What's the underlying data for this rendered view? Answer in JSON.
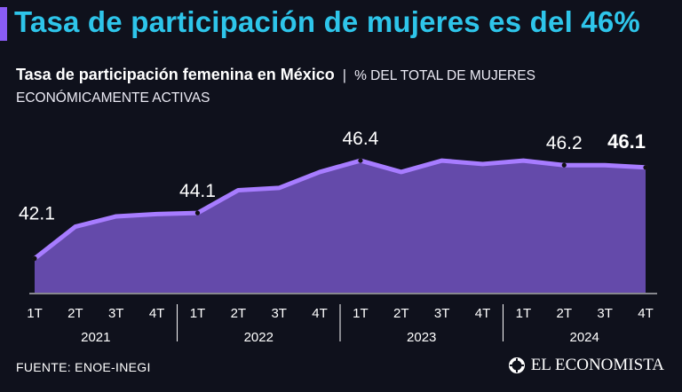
{
  "headline": "Tasa de participación de mujeres es del 46%",
  "subtitle": {
    "title": "Tasa de participación femenina en México",
    "separator": "|",
    "unit": "% DEL TOTAL DE MUJERES ECONÓMICAMENTE ACTIVAS"
  },
  "colors": {
    "background": "#0f111c",
    "headline": "#2ec5ea",
    "accent": "#8a5cf6",
    "area_fill": "#6b4fb6",
    "line": "#a77cff"
  },
  "chart_data": {
    "type": "area",
    "title": "Tasa de participación femenina en México",
    "ylabel": "% del total de mujeres económicamente activas",
    "xlabel": "",
    "categories": [
      "1T",
      "2T",
      "3T",
      "4T",
      "1T",
      "2T",
      "3T",
      "4T",
      "1T",
      "2T",
      "3T",
      "4T",
      "1T",
      "2T",
      "3T",
      "4T"
    ],
    "years": [
      "2021",
      "2022",
      "2023",
      "2024"
    ],
    "values": [
      42.1,
      43.5,
      43.95,
      44.05,
      44.1,
      45.1,
      45.2,
      45.9,
      46.4,
      45.9,
      46.4,
      46.25,
      46.4,
      46.2,
      46.2,
      46.1
    ],
    "ylim": [
      40.6,
      48.0
    ],
    "grid": false,
    "data_labels": [
      {
        "index": 0,
        "text": "42.1",
        "bold": false
      },
      {
        "index": 4,
        "text": "44.1",
        "bold": false
      },
      {
        "index": 8,
        "text": "46.4",
        "bold": false
      },
      {
        "index": 13,
        "text": "46.2",
        "bold": false
      },
      {
        "index": 15,
        "text": "46.1",
        "bold": true
      }
    ]
  },
  "footer": {
    "source": "FUENTE: ENOE-INEGI",
    "brand": "EL ECONOMISTA",
    "brand_icon": "el-economista-logo-icon"
  }
}
